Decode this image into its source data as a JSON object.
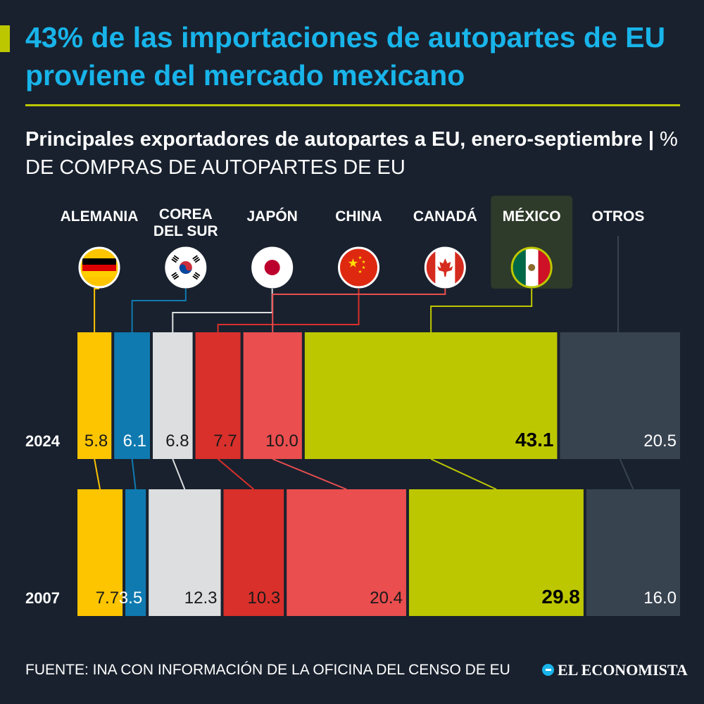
{
  "header": {
    "title": "43% de las importaciones de autopartes de EU proviene del mercado mexicano",
    "subtitle": "Principales exportadores de autopartes a EU, enero-septiembre",
    "unit": "% DE COMPRAS DE AUTOPARTES DE EU"
  },
  "footer": {
    "source": "FUENTE: INA CON INFORMACIÓN DE LA OFICINA DEL CENSO DE EU",
    "brand": "EL ECONOMISTA"
  },
  "chart_data": {
    "type": "bar",
    "stacked": true,
    "orientation": "horizontal",
    "highlight": "MÉXICO",
    "categories": [
      "ALEMANIA",
      "COREA DEL SUR",
      "JAPÓN",
      "CHINA",
      "CANADÁ",
      "MÉXICO",
      "OTROS"
    ],
    "category_flags": [
      "germany-flag-icon",
      "south-korea-flag-icon",
      "japan-flag-icon",
      "china-flag-icon",
      "canada-flag-icon",
      "mexico-flag-icon",
      ""
    ],
    "colors": [
      "#fdc500",
      "#0f7ab0",
      "#dcdedf",
      "#d9302b",
      "#ea4e4f",
      "#bdc700",
      "#384350"
    ],
    "label_colors": [
      "#1a1a1a",
      "#ffffff",
      "#1a1a1a",
      "#1a1a1a",
      "#1a1a1a",
      "#000000",
      "#ffffff"
    ],
    "series": [
      {
        "name": "2024",
        "values": [
          5.8,
          6.1,
          6.8,
          7.7,
          10.0,
          43.1,
          20.5
        ]
      },
      {
        "name": "2007",
        "values": [
          7.7,
          3.5,
          12.3,
          10.3,
          20.4,
          29.8,
          16.0
        ]
      }
    ]
  }
}
